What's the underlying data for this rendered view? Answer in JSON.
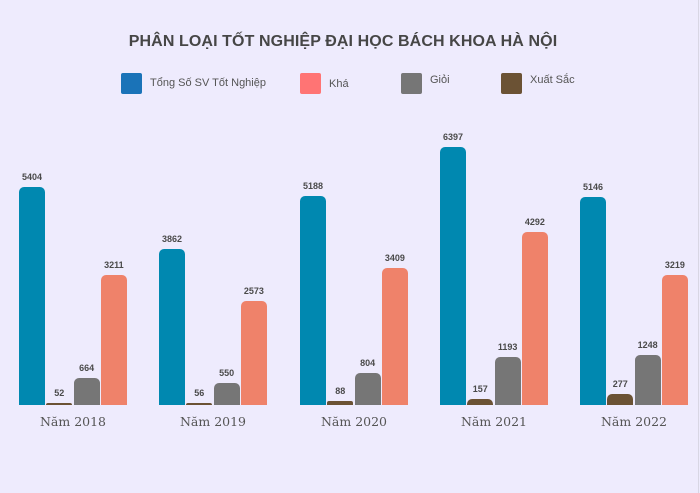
{
  "chart_data": {
    "type": "bar",
    "title": "PHÂN LOẠI TỐT NGHIỆP ĐẠI HỌC BÁCH KHOA HÀ NỘI",
    "xlabel": "",
    "ylabel": "",
    "grid": false,
    "legend_position": "top",
    "categories": [
      "Năm 2018",
      "Năm 2019",
      "Năm 2020",
      "Năm 2021",
      "Năm 2022"
    ],
    "series": [
      {
        "name": "Tổng Số SV Tốt Nghiệp",
        "color": "#0088b0",
        "legend_color": "#1a73b8",
        "values": [
          5404,
          3862,
          5188,
          6397,
          5146
        ]
      },
      {
        "name": "Xuất Sắc",
        "color": "#6b5234",
        "legend_color": "#6b5234",
        "values": [
          52,
          56,
          88,
          157,
          277
        ]
      },
      {
        "name": "Giỏi",
        "color": "#767676",
        "legend_color": "#767676",
        "values": [
          664,
          550,
          804,
          1193,
          1248
        ]
      },
      {
        "name": "Khá",
        "color": "#ef826a",
        "legend_color": "#ff7474",
        "values": [
          3211,
          2573,
          3409,
          4292,
          3219
        ]
      }
    ],
    "ylim": [
      0,
      6400
    ]
  },
  "legend": [
    {
      "label": "Tổng Số SV Tốt Nghiệp",
      "color": "#1a73b8"
    },
    {
      "label": "Khá",
      "color": "#ff7474"
    },
    {
      "label": "Giỏi",
      "color": "#767676"
    },
    {
      "label": "Xuất Sắc",
      "color": "#6b5234"
    }
  ]
}
